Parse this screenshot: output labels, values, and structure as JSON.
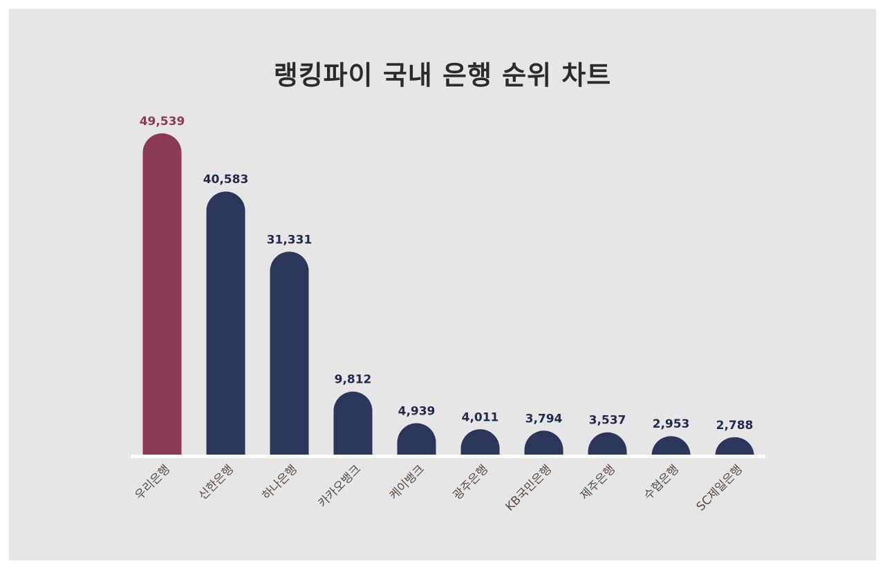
{
  "title": "랭킹파이 국내 은행 순위 차트",
  "colors": {
    "background": "#e6e6e6",
    "highlight": "#8b3a55",
    "bar": "#2b365a",
    "axis": "#ffffff",
    "category_text": "#5a4a44"
  },
  "chart_data": {
    "type": "bar",
    "title": "랭킹파이 국내 은행 순위 차트",
    "categories": [
      "우리은행",
      "신한은행",
      "하나은행",
      "카카오뱅크",
      "케이뱅크",
      "광주은행",
      "KB국민은행",
      "제주은행",
      "수협은행",
      "SC제일은행"
    ],
    "values": [
      49539,
      40583,
      31331,
      9812,
      4939,
      4011,
      3794,
      3537,
      2953,
      2788
    ],
    "value_labels": [
      "49,539",
      "40,583",
      "31,331",
      "9,812",
      "4,939",
      "4,011",
      "3,794",
      "3,537",
      "2,953",
      "2,788"
    ],
    "highlight_index": 0,
    "xlabel": "",
    "ylabel": "",
    "ylim": [
      0,
      49539
    ],
    "grid": false,
    "legend": "none"
  }
}
